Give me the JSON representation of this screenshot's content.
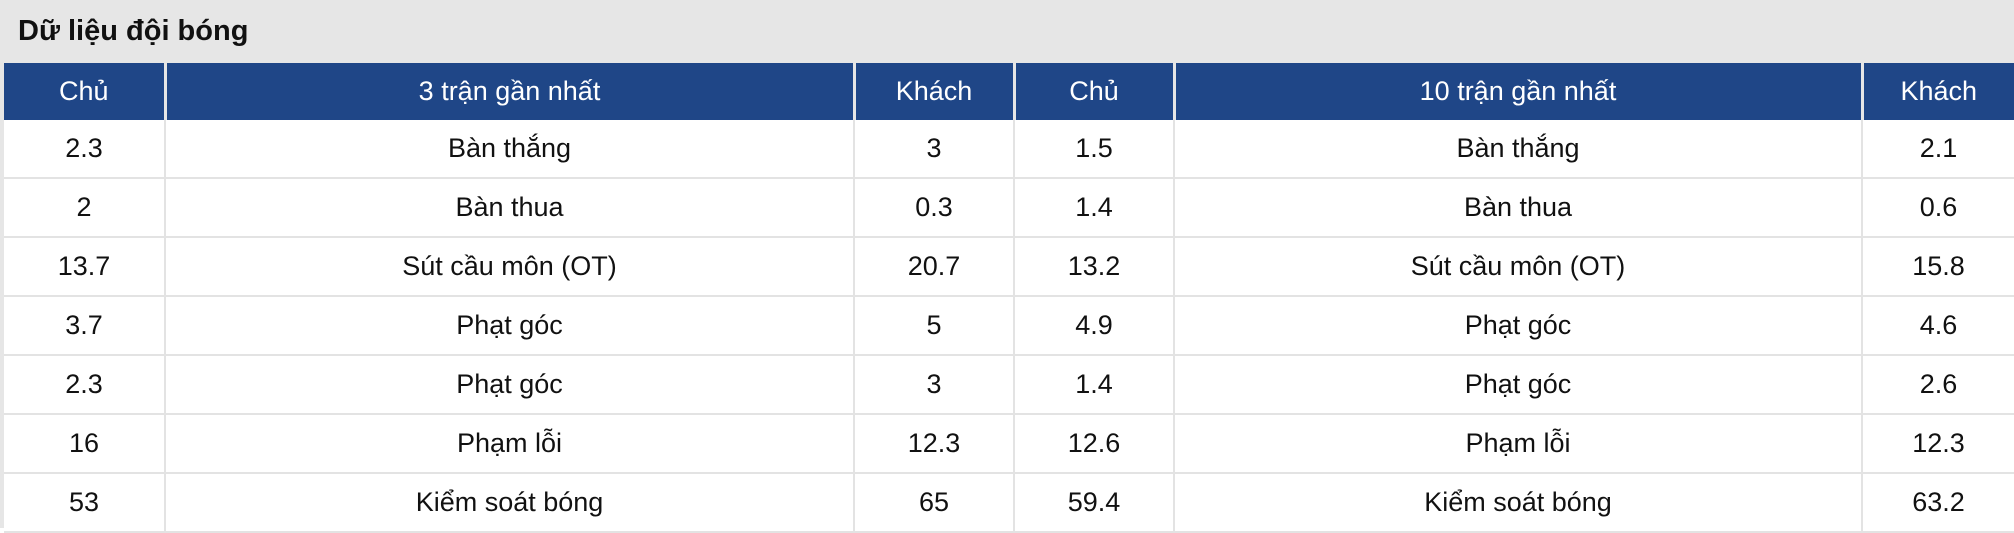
{
  "title": "Dữ liệu đội bóng",
  "headers": [
    "Chủ",
    "3 trận gần nhất",
    "Khách",
    "Chủ",
    "10 trận gần nhất",
    "Khách"
  ],
  "rows": [
    [
      "2.3",
      "Bàn thắng",
      "3",
      "1.5",
      "Bàn thắng",
      "2.1"
    ],
    [
      "2",
      "Bàn thua",
      "0.3",
      "1.4",
      "Bàn thua",
      "0.6"
    ],
    [
      "13.7",
      "Sút cầu môn (OT)",
      "20.7",
      "13.2",
      "Sút cầu môn (OT)",
      "15.8"
    ],
    [
      "3.7",
      "Phạt góc",
      "5",
      "4.9",
      "Phạt góc",
      "4.6"
    ],
    [
      "2.3",
      "Phạt góc",
      "3",
      "1.4",
      "Phạt góc",
      "2.6"
    ],
    [
      "16",
      "Phạm lỗi",
      "12.3",
      "12.6",
      "Phạm lỗi",
      "12.3"
    ],
    [
      "53",
      "Kiểm soát bóng",
      "65",
      "59.4",
      "Kiểm soát bóng",
      "63.2"
    ]
  ],
  "colors": {
    "header_bg": "#1f4687",
    "title_bg": "#e6e6e6"
  }
}
